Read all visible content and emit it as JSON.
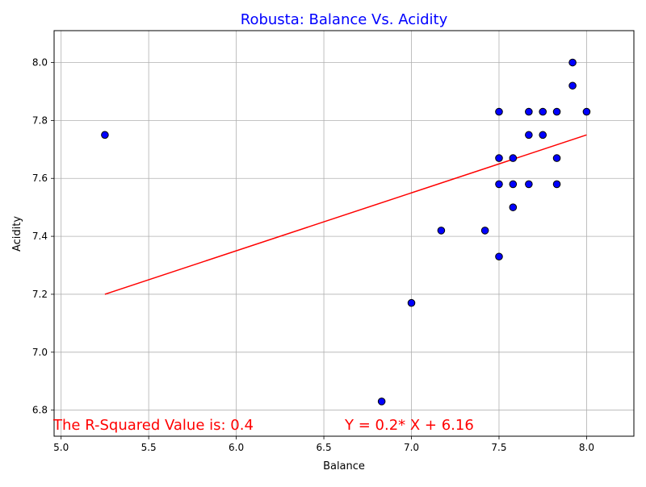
{
  "chart_data": {
    "type": "scatter",
    "title": "Robusta: Balance Vs. Acidity",
    "xlabel": "Balance",
    "ylabel": "Acidity",
    "xlim": [
      4.96,
      8.27
    ],
    "ylim": [
      6.71,
      8.11
    ],
    "xticks": [
      "5.0",
      "5.5",
      "6.0",
      "6.5",
      "7.0",
      "7.5",
      "8.0"
    ],
    "yticks": [
      "6.8",
      "7.0",
      "7.2",
      "7.4",
      "7.6",
      "7.8",
      "8.0"
    ],
    "grid": true,
    "points": [
      {
        "x": 5.25,
        "y": 7.75
      },
      {
        "x": 6.83,
        "y": 6.83
      },
      {
        "x": 7.0,
        "y": 7.17
      },
      {
        "x": 7.17,
        "y": 7.42
      },
      {
        "x": 7.42,
        "y": 7.42
      },
      {
        "x": 7.5,
        "y": 7.83
      },
      {
        "x": 7.5,
        "y": 7.67
      },
      {
        "x": 7.5,
        "y": 7.58
      },
      {
        "x": 7.5,
        "y": 7.33
      },
      {
        "x": 7.58,
        "y": 7.67
      },
      {
        "x": 7.58,
        "y": 7.58
      },
      {
        "x": 7.58,
        "y": 7.5
      },
      {
        "x": 7.67,
        "y": 7.83
      },
      {
        "x": 7.67,
        "y": 7.75
      },
      {
        "x": 7.67,
        "y": 7.58
      },
      {
        "x": 7.75,
        "y": 7.83
      },
      {
        "x": 7.75,
        "y": 7.75
      },
      {
        "x": 7.83,
        "y": 7.83
      },
      {
        "x": 7.83,
        "y": 7.67
      },
      {
        "x": 7.83,
        "y": 7.58
      },
      {
        "x": 7.92,
        "y": 8.0
      },
      {
        "x": 7.92,
        "y": 7.92
      },
      {
        "x": 8.0,
        "y": 7.83
      }
    ],
    "regression_line": {
      "x": [
        5.25,
        8.0
      ],
      "y": [
        7.2,
        7.75
      ]
    },
    "annotations": {
      "r_squared": "The R-Squared Value is: 0.4",
      "equation": "Y = 0.2* X + 6.16"
    },
    "colors": {
      "title": "#0000ff",
      "point_fill": "#0000ff",
      "point_edge": "#000000",
      "line": "#ff0000",
      "annotation": "#ff0000",
      "grid": "#b0b0b0"
    }
  }
}
